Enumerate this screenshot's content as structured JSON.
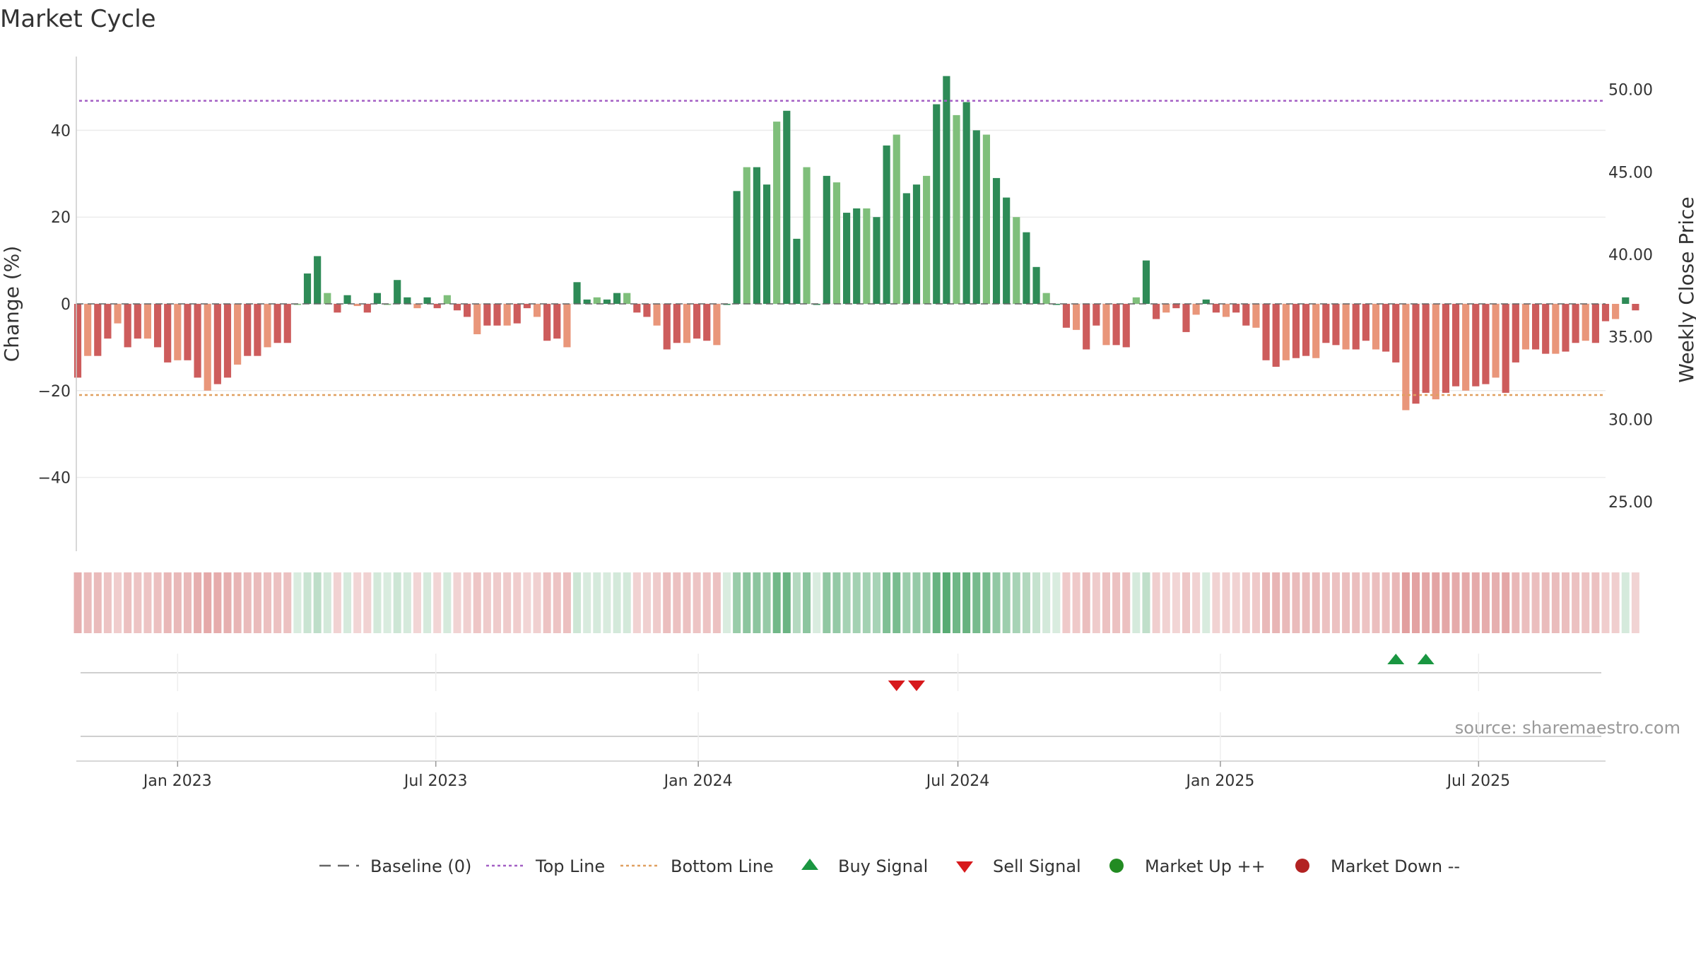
{
  "chart_data": {
    "type": "bar",
    "title": "Market Cycle",
    "ylabel_left": "Change (%)",
    "ylabel_right": "Weekly Close Price",
    "source": "source: sharemaestro.com",
    "left_axis": {
      "ylim": [
        -57,
        57
      ],
      "ticks": [
        40,
        20,
        0,
        -20,
        -40
      ],
      "tick_labels": [
        "40",
        "20",
        "0",
        "−20",
        "−40"
      ]
    },
    "right_axis": {
      "ylim": [
        22.0,
        52.0
      ],
      "ticks": [
        50,
        45,
        40,
        35,
        30,
        25
      ],
      "tick_labels": [
        "50.00",
        "45.00",
        "40.00",
        "35.00",
        "30.00",
        "25.00"
      ]
    },
    "x_axis": {
      "type": "date",
      "range": [
        "2022-10-22",
        "2025-09-28"
      ],
      "ticks": [
        "2023-01-01",
        "2023-07-01",
        "2024-01-01",
        "2024-07-01",
        "2025-01-01",
        "2025-07-01"
      ],
      "tick_labels": [
        "Jan 2023",
        "Jul 2023",
        "Jan 2024",
        "Jul 2024",
        "Jan 2025",
        "Jul 2025"
      ]
    },
    "top_line": 46.8,
    "bottom_line": -21,
    "baseline": 0,
    "grid": true,
    "legend_position": "bottom",
    "colors": {
      "strong_up": "#2e8b57",
      "weak_up": "#7fbf7b",
      "strong_down": "#cd5c5c",
      "weak_down": "#e9967a",
      "top_line": "#a35fc4",
      "bottom_line": "#e0a060",
      "buy": "#1a9641",
      "sell": "#d7191c",
      "market_up": "#228b22",
      "market_down": "#b22222"
    },
    "bars": {
      "start_date": "2022-10-23",
      "interval_days": 7,
      "values": [
        -17,
        -12,
        -12,
        -8,
        -4.5,
        -10,
        -8,
        -8,
        -10,
        -13.5,
        -13,
        -13,
        -17,
        -20,
        -18.5,
        -17,
        -14,
        -12,
        -12,
        -10,
        -9,
        -9,
        0,
        7,
        11,
        2.5,
        -2,
        2,
        -0.5,
        -2,
        2.5,
        0,
        5.5,
        1.5,
        -1,
        1.5,
        -1,
        2,
        -1.5,
        -3,
        -7,
        -5,
        -5,
        -5,
        -4.5,
        -1,
        -3,
        -8.5,
        -8,
        -10,
        5,
        1,
        1.5,
        1,
        2.5,
        2.5,
        -2,
        -3,
        -5,
        -10.5,
        -9,
        -9,
        -8,
        -8.5,
        -9.5,
        0,
        26,
        31.5,
        31.5,
        27.5,
        42,
        44.5,
        15,
        31.5,
        0,
        29.5,
        28,
        21,
        22,
        22,
        20,
        36.5,
        39,
        25.5,
        27.5,
        29.5,
        46,
        52.5,
        43.5,
        46.5,
        40,
        39,
        29,
        24.5,
        20,
        16.5,
        8.5,
        2.5,
        0,
        -5.5,
        -6,
        -10.5,
        -5,
        -9.5,
        -9.5,
        -10,
        1.5,
        10,
        -3.5,
        -2,
        -1,
        -6.5,
        -2.5,
        1,
        -2,
        -3,
        -2,
        -5,
        -5.5,
        -13,
        -14.5,
        -13,
        -12.5,
        -12,
        -12.5,
        -9,
        -9.5,
        -10.5,
        -10.5,
        -8.5,
        -10.5,
        -11,
        -13.5,
        -24.5,
        -23,
        -20.5,
        -22,
        -20.5,
        -19,
        -20,
        -19,
        -18.5,
        -17,
        -20.5,
        -13.5,
        -10.5,
        -10.5,
        -11.5,
        -11.5,
        -11,
        -9,
        -8.5,
        -9,
        -4,
        -3.5,
        1.5,
        -1.5
      ],
      "strength": "alternating strong/weak shading as rendered"
    },
    "heat_strip": {
      "type": "heatmap",
      "description_values_follow_bars": true
    },
    "signals": {
      "buy": [
        "2025-05-04",
        "2025-05-25"
      ],
      "sell": [
        "2024-05-19",
        "2024-06-02"
      ]
    },
    "legend": [
      {
        "label": "Baseline (0)",
        "symbol": "dashed-line"
      },
      {
        "label": "Top Line",
        "symbol": "dotted-purple"
      },
      {
        "label": "Bottom Line",
        "symbol": "dotted-orange"
      },
      {
        "label": "Buy Signal",
        "symbol": "triangle-up"
      },
      {
        "label": "Sell Signal",
        "symbol": "triangle-down"
      },
      {
        "label": "Market Up ++",
        "symbol": "circle-green"
      },
      {
        "label": "Market Down --",
        "symbol": "circle-red"
      }
    ]
  }
}
